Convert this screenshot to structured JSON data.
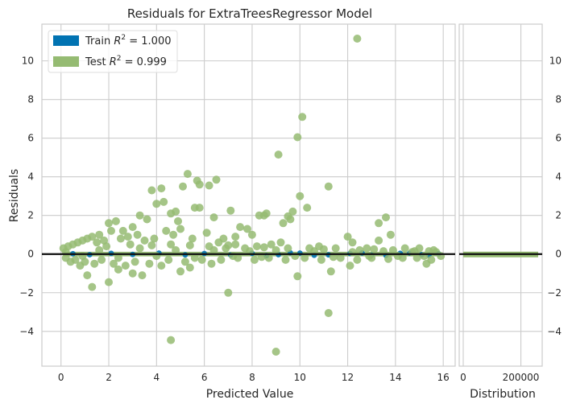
{
  "chart_data": {
    "type": "scatter",
    "title": "Residuals for ExtraTreesRegressor Model",
    "xlabel": "Predicted Value",
    "ylabel": "Residuals",
    "xlim": [
      -0.8,
      16.5
    ],
    "ylim": [
      -5.8,
      11.9
    ],
    "x_ticks": [
      0,
      2,
      4,
      6,
      8,
      10,
      12,
      14,
      16
    ],
    "y_ticks": [
      -4,
      -2,
      0,
      2,
      4,
      6,
      8,
      10
    ],
    "grid": true,
    "legend_position": "top-left",
    "zero_line": 0,
    "series": [
      {
        "name": "Train R² = 1.000",
        "legend_main": "Train ",
        "legend_r2": "R",
        "legend_sup": "2",
        "legend_tail": " = 1.000",
        "color": "#0173b2",
        "points": [
          [
            0.5,
            0.02
          ],
          [
            1.2,
            -0.03
          ],
          [
            2.1,
            0.04
          ],
          [
            3.0,
            -0.02
          ],
          [
            4.1,
            0.05
          ],
          [
            5.2,
            -0.04
          ],
          [
            6.0,
            0.03
          ],
          [
            7.1,
            -0.05
          ],
          [
            8.0,
            0.04
          ],
          [
            9.1,
            -0.03
          ],
          [
            10.0,
            0.05
          ],
          [
            11.2,
            -0.04
          ],
          [
            12.1,
            0.03
          ],
          [
            13.0,
            -0.05
          ],
          [
            14.2,
            0.04
          ],
          [
            15.1,
            -0.03
          ],
          [
            15.8,
            0.02
          ],
          [
            8.6,
            -0.08
          ],
          [
            9.6,
            0.07
          ],
          [
            10.6,
            -0.06
          ],
          [
            12.6,
            0.06
          ],
          [
            13.6,
            -0.07
          ],
          [
            14.6,
            0.05
          ],
          [
            15.4,
            -0.06
          ]
        ]
      },
      {
        "name": "Test R² = 0.999",
        "legend_main": "Test ",
        "legend_r2": "R",
        "legend_sup": "2",
        "legend_tail": " = 0.999",
        "color": "#95bb72",
        "points": [
          [
            12.4,
            11.15
          ],
          [
            10.1,
            7.1
          ],
          [
            9.9,
            6.05
          ],
          [
            9.1,
            5.15
          ],
          [
            5.3,
            4.15
          ],
          [
            6.5,
            3.85
          ],
          [
            5.7,
            3.8
          ],
          [
            11.2,
            3.5
          ],
          [
            4.2,
            3.4
          ],
          [
            3.8,
            3.3
          ],
          [
            5.1,
            3.5
          ],
          [
            5.8,
            3.6
          ],
          [
            6.2,
            3.55
          ],
          [
            4.3,
            2.7
          ],
          [
            4.0,
            2.6
          ],
          [
            7.1,
            2.25
          ],
          [
            10.0,
            3.0
          ],
          [
            10.3,
            2.4
          ],
          [
            9.7,
            2.2
          ],
          [
            9.5,
            1.95
          ],
          [
            8.3,
            2.0
          ],
          [
            8.5,
            2.0
          ],
          [
            8.6,
            2.1
          ],
          [
            9.3,
            1.6
          ],
          [
            9.6,
            1.8
          ],
          [
            5.6,
            2.4
          ],
          [
            5.8,
            2.4
          ],
          [
            4.6,
            2.1
          ],
          [
            4.8,
            2.2
          ],
          [
            4.9,
            1.7
          ],
          [
            6.4,
            1.9
          ],
          [
            3.3,
            2.0
          ],
          [
            3.6,
            1.8
          ],
          [
            2.0,
            1.6
          ],
          [
            2.3,
            1.7
          ],
          [
            2.1,
            1.2
          ],
          [
            2.6,
            1.2
          ],
          [
            3.0,
            1.4
          ],
          [
            13.3,
            1.6
          ],
          [
            13.6,
            1.9
          ],
          [
            13.8,
            1.0
          ],
          [
            13.3,
            0.7
          ],
          [
            12.0,
            0.9
          ],
          [
            12.2,
            0.6
          ],
          [
            7.5,
            1.4
          ],
          [
            7.8,
            1.3
          ],
          [
            8.0,
            1.0
          ],
          [
            7.3,
            0.9
          ],
          [
            6.8,
            0.8
          ],
          [
            7.7,
            0.3
          ],
          [
            6.9,
            0.3
          ],
          [
            7.0,
            -2.0
          ],
          [
            11.2,
            -3.05
          ],
          [
            9.0,
            -5.05
          ],
          [
            4.6,
            -4.45
          ],
          [
            2.0,
            -1.45
          ],
          [
            1.3,
            -1.7
          ],
          [
            1.1,
            -1.1
          ],
          [
            9.9,
            -1.15
          ],
          [
            3.0,
            -1.0
          ],
          [
            3.4,
            -1.1
          ],
          [
            5.0,
            -0.9
          ],
          [
            5.4,
            -0.7
          ],
          [
            2.4,
            -0.8
          ],
          [
            11.3,
            -0.9
          ],
          [
            12.1,
            -0.6
          ],
          [
            15.3,
            -0.5
          ],
          [
            0.4,
            -0.4
          ],
          [
            0.8,
            -0.6
          ],
          [
            0.2,
            -0.2
          ],
          [
            0.1,
            0.3
          ],
          [
            0.3,
            0.4
          ],
          [
            0.5,
            0.5
          ],
          [
            0.7,
            0.6
          ],
          [
            0.9,
            0.7
          ],
          [
            1.1,
            0.8
          ],
          [
            1.3,
            0.9
          ],
          [
            1.5,
            0.6
          ],
          [
            1.6,
            1.0
          ],
          [
            1.8,
            0.7
          ],
          [
            2.5,
            0.8
          ],
          [
            2.8,
            0.9
          ],
          [
            3.2,
            1.0
          ],
          [
            3.5,
            0.7
          ],
          [
            3.9,
            0.8
          ],
          [
            4.4,
            1.2
          ],
          [
            4.7,
            1.0
          ],
          [
            5.0,
            1.3
          ],
          [
            5.5,
            0.8
          ],
          [
            6.1,
            1.1
          ],
          [
            6.6,
            0.6
          ],
          [
            7.3,
            0.5
          ],
          [
            8.2,
            0.4
          ],
          [
            8.8,
            0.5
          ],
          [
            9.2,
            0.6
          ],
          [
            10.4,
            0.3
          ],
          [
            10.8,
            0.4
          ],
          [
            11.5,
            0.3
          ],
          [
            12.8,
            0.3
          ],
          [
            13.1,
            0.25
          ],
          [
            14.4,
            0.3
          ],
          [
            15.0,
            0.3
          ],
          [
            15.6,
            0.2
          ],
          [
            0.6,
            -0.3
          ],
          [
            1.0,
            -0.4
          ],
          [
            1.4,
            -0.5
          ],
          [
            1.7,
            -0.3
          ],
          [
            2.2,
            -0.5
          ],
          [
            2.7,
            -0.6
          ],
          [
            3.1,
            -0.4
          ],
          [
            3.7,
            -0.5
          ],
          [
            4.2,
            -0.6
          ],
          [
            4.5,
            -0.3
          ],
          [
            5.2,
            -0.4
          ],
          [
            5.9,
            -0.3
          ],
          [
            6.3,
            -0.5
          ],
          [
            6.7,
            -0.3
          ],
          [
            7.4,
            -0.2
          ],
          [
            8.1,
            -0.3
          ],
          [
            8.7,
            -0.2
          ],
          [
            9.4,
            -0.3
          ],
          [
            10.2,
            -0.2
          ],
          [
            10.9,
            -0.3
          ],
          [
            11.7,
            -0.2
          ],
          [
            12.4,
            -0.3
          ],
          [
            13.0,
            -0.2
          ],
          [
            13.7,
            -0.25
          ],
          [
            14.3,
            -0.2
          ],
          [
            14.9,
            -0.2
          ],
          [
            15.5,
            -0.3
          ],
          [
            15.9,
            -0.1
          ],
          [
            0.2,
            0.1
          ],
          [
            0.9,
            -0.1
          ],
          [
            1.6,
            0.2
          ],
          [
            2.4,
            -0.2
          ],
          [
            3.3,
            0.3
          ],
          [
            4.0,
            -0.1
          ],
          [
            4.8,
            0.2
          ],
          [
            5.6,
            -0.2
          ],
          [
            6.4,
            0.2
          ],
          [
            7.2,
            -0.1
          ],
          [
            7.9,
            0.15
          ],
          [
            8.4,
            -0.15
          ],
          [
            9.0,
            0.2
          ],
          [
            9.8,
            -0.1
          ],
          [
            10.6,
            0.15
          ],
          [
            11.4,
            -0.15
          ],
          [
            12.2,
            0.1
          ],
          [
            12.9,
            -0.1
          ],
          [
            13.5,
            0.15
          ],
          [
            14.1,
            -0.1
          ],
          [
            14.7,
            0.1
          ],
          [
            15.2,
            -0.1
          ],
          [
            15.7,
            0.1
          ],
          [
            1.9,
            0.4
          ],
          [
            2.9,
            0.5
          ],
          [
            3.8,
            0.45
          ],
          [
            4.6,
            0.5
          ],
          [
            5.4,
            0.45
          ],
          [
            6.2,
            0.4
          ],
          [
            7.0,
            0.45
          ],
          [
            8.5,
            0.35
          ],
          [
            9.5,
            0.3
          ],
          [
            11.0,
            0.25
          ],
          [
            12.5,
            0.2
          ],
          [
            13.9,
            0.2
          ],
          [
            14.8,
            0.15
          ],
          [
            15.4,
            0.15
          ]
        ]
      }
    ],
    "distribution": {
      "xlabel": "Distribution",
      "xlim": [
        0,
        260000
      ],
      "x_ticks": [
        0,
        200000
      ],
      "x_tick_labels": [
        "0",
        "200000"
      ]
    }
  }
}
